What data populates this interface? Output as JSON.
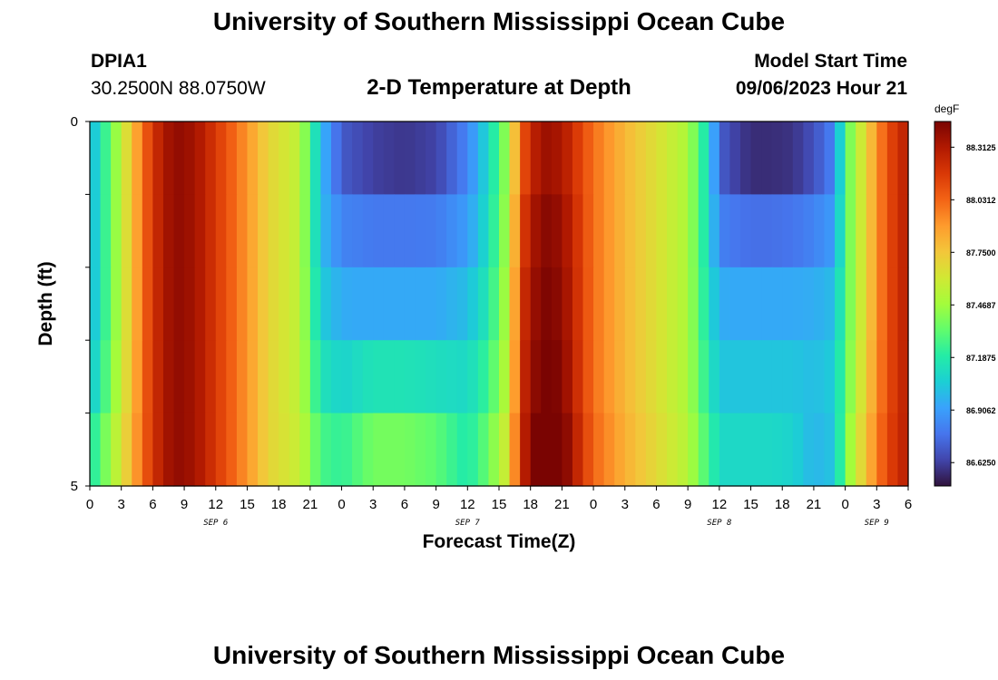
{
  "header": {
    "title": "University of Southern Mississippi Ocean Cube",
    "station_id": "DPIA1",
    "coordinates": "30.2500N  88.0750W",
    "subtitle": "2-D Temperature at Depth",
    "start_label": "Model Start Time",
    "start_value": "09/06/2023 Hour 21"
  },
  "footer": {
    "title": "University of Southern Mississippi Ocean Cube"
  },
  "chart_data": {
    "type": "heatmap",
    "title": "2-D Temperature at Depth",
    "xlabel": "Forecast Time(Z)",
    "ylabel": "Depth (ft)",
    "x_range_hours": [
      0,
      78
    ],
    "x_step_hours": 1,
    "x_tick_labels": [
      "0",
      "3",
      "6",
      "9",
      "12",
      "15",
      "18",
      "21",
      "0",
      "3",
      "6",
      "9",
      "12",
      "15",
      "18",
      "21",
      "0",
      "3",
      "6",
      "9",
      "12",
      "15",
      "18",
      "21",
      "0",
      "3",
      "6"
    ],
    "day_labels": [
      {
        "label": "SEP 6",
        "hour": 12
      },
      {
        "label": "SEP 7",
        "hour": 36
      },
      {
        "label": "SEP 8",
        "hour": 60
      },
      {
        "label": "SEP 9",
        "hour": 75
      }
    ],
    "y_range": [
      0,
      5
    ],
    "y_tick_labels": [
      "0",
      "5"
    ],
    "depth_levels": 5,
    "units": "degF",
    "colorbar_ticks": [
      "88.3125",
      "88.0312",
      "87.7500",
      "87.4687",
      "87.1875",
      "86.9062",
      "86.6250"
    ],
    "color_range": [
      86.5,
      88.45
    ],
    "colormap": [
      "#30123b",
      "#4145ab",
      "#4675ed",
      "#39a2fc",
      "#1bcfd4",
      "#24eca6",
      "#61fc6c",
      "#a4fc3b",
      "#d1e834",
      "#f3c63a",
      "#fe9b2d",
      "#f36315",
      "#d93806",
      "#b11901",
      "#7a0402"
    ],
    "anchor_hours": [
      0,
      3,
      6,
      8,
      10,
      14,
      17,
      20,
      22,
      24,
      25,
      27,
      30,
      33,
      36,
      38,
      40,
      41,
      43,
      45,
      48,
      51,
      54,
      57,
      59,
      60,
      61,
      63,
      65,
      67,
      69,
      71,
      72,
      74,
      76,
      78
    ],
    "anchor_temps": [
      [
        86.95,
        87.55,
        88.2,
        88.4,
        88.35,
        88.0,
        87.7,
        87.55,
        87.0,
        86.65,
        86.6,
        86.55,
        86.5,
        86.55,
        86.8,
        87.1,
        87.5,
        88.0,
        88.35,
        88.3,
        88.0,
        87.8,
        87.65,
        87.5,
        87.1,
        86.7,
        86.6,
        86.5,
        86.5,
        86.5,
        86.6,
        86.8,
        87.3,
        87.7,
        88.1,
        88.3
      ],
      [
        86.95,
        87.55,
        88.2,
        88.4,
        88.35,
        88.0,
        87.7,
        87.55,
        87.0,
        86.75,
        86.75,
        86.7,
        86.7,
        86.72,
        86.85,
        87.1,
        87.5,
        88.1,
        88.4,
        88.35,
        88.0,
        87.8,
        87.65,
        87.5,
        87.1,
        86.75,
        86.7,
        86.65,
        86.65,
        86.68,
        86.75,
        86.85,
        87.3,
        87.7,
        88.1,
        88.3
      ],
      [
        86.95,
        87.55,
        88.2,
        88.4,
        88.35,
        88.0,
        87.7,
        87.55,
        87.0,
        86.9,
        86.88,
        86.88,
        86.88,
        86.88,
        86.95,
        87.15,
        87.55,
        88.15,
        88.45,
        88.4,
        88.0,
        87.8,
        87.65,
        87.5,
        87.1,
        86.9,
        86.88,
        86.88,
        86.88,
        86.88,
        86.9,
        86.95,
        87.3,
        87.7,
        88.1,
        88.3
      ],
      [
        86.95,
        87.55,
        88.2,
        88.4,
        88.35,
        88.0,
        87.7,
        87.55,
        87.1,
        87.0,
        87.0,
        87.0,
        87.0,
        87.0,
        87.05,
        87.2,
        87.55,
        88.2,
        88.45,
        88.4,
        88.0,
        87.8,
        87.65,
        87.5,
        87.15,
        87.0,
        87.0,
        87.0,
        87.0,
        87.0,
        87.0,
        87.05,
        87.3,
        87.7,
        88.1,
        88.3
      ],
      [
        87.05,
        87.6,
        88.2,
        88.4,
        88.35,
        88.0,
        87.7,
        87.55,
        87.2,
        87.15,
        87.2,
        87.3,
        87.3,
        87.25,
        87.15,
        87.3,
        87.6,
        88.2,
        88.5,
        88.45,
        88.0,
        87.8,
        87.65,
        87.5,
        87.2,
        87.05,
        87.05,
        87.05,
        87.05,
        87.05,
        87.0,
        87.05,
        87.35,
        87.75,
        88.1,
        88.3
      ],
      [
        87.25,
        87.65,
        88.2,
        88.4,
        88.35,
        88.0,
        87.7,
        87.6,
        87.35,
        87.3,
        87.35,
        87.45,
        87.45,
        87.4,
        87.2,
        87.4,
        87.7,
        88.25,
        88.55,
        88.5,
        88.05,
        87.85,
        87.7,
        87.55,
        87.3,
        87.15,
        87.15,
        87.15,
        87.15,
        87.1,
        86.95,
        87.0,
        87.4,
        87.8,
        88.15,
        88.3
      ]
    ]
  }
}
